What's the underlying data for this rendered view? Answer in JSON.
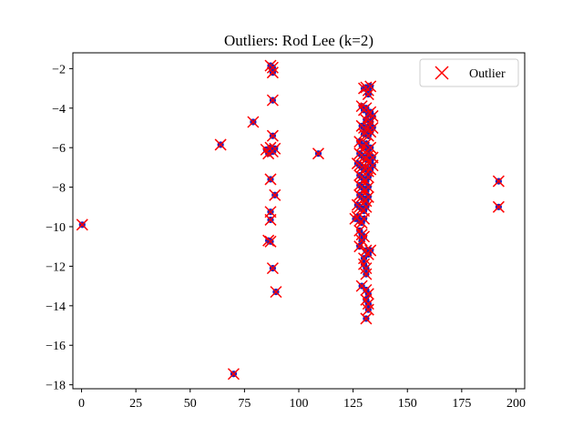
{
  "chart_data": {
    "type": "scatter",
    "title": "Outliers: Rod Lee (k=2)",
    "xlabel": "",
    "ylabel": "",
    "xlim": [
      -4,
      204
    ],
    "ylim": [
      -18.2,
      -1.2
    ],
    "xticks": [
      0,
      25,
      50,
      75,
      100,
      125,
      150,
      175,
      200
    ],
    "yticks": [
      -18,
      -16,
      -14,
      -12,
      -10,
      -8,
      -6,
      -4,
      -2
    ],
    "grid": false,
    "legend": {
      "position": "top-right",
      "entries": [
        "Outlier"
      ]
    },
    "colors": {
      "points": "#1f1fbf",
      "outlier_marker": "#ff0000"
    },
    "series": [
      {
        "name": "Outlier",
        "marker": "x",
        "points": [
          [
            0.3,
            -9.9
          ],
          [
            64,
            -5.85
          ],
          [
            70,
            -17.45
          ],
          [
            79,
            -4.7
          ],
          [
            85,
            -6.1
          ],
          [
            86,
            -6.3
          ],
          [
            87,
            -6.0
          ],
          [
            88,
            -6.2
          ],
          [
            89,
            -6.05
          ],
          [
            87,
            -1.85
          ],
          [
            88,
            -1.95
          ],
          [
            88,
            -2.2
          ],
          [
            88,
            -3.6
          ],
          [
            88,
            -5.4
          ],
          [
            87,
            -7.6
          ],
          [
            89,
            -8.4
          ],
          [
            87,
            -9.25
          ],
          [
            87,
            -9.65
          ],
          [
            86,
            -10.7
          ],
          [
            87,
            -10.75
          ],
          [
            88,
            -12.1
          ],
          [
            89.5,
            -13.3
          ],
          [
            109,
            -6.3
          ],
          [
            130,
            -3.0
          ],
          [
            131,
            -2.95
          ],
          [
            132,
            -3.1
          ],
          [
            133,
            -2.9
          ],
          [
            132,
            -3.3
          ],
          [
            129,
            -3.9
          ],
          [
            130,
            -4.1
          ],
          [
            131,
            -4.0
          ],
          [
            132,
            -4.3
          ],
          [
            133,
            -4.2
          ],
          [
            134,
            -4.4
          ],
          [
            131,
            -4.6
          ],
          [
            133,
            -4.7
          ],
          [
            129,
            -4.9
          ],
          [
            130,
            -5.0
          ],
          [
            131,
            -5.1
          ],
          [
            132,
            -4.95
          ],
          [
            133,
            -5.2
          ],
          [
            134,
            -5.0
          ],
          [
            130,
            -5.3
          ],
          [
            132,
            -5.4
          ],
          [
            128,
            -5.7
          ],
          [
            129,
            -5.9
          ],
          [
            130,
            -6.0
          ],
          [
            131,
            -5.8
          ],
          [
            132,
            -6.1
          ],
          [
            133,
            -6.0
          ],
          [
            128,
            -6.3
          ],
          [
            129,
            -6.4
          ],
          [
            130,
            -6.5
          ],
          [
            131,
            -6.6
          ],
          [
            132,
            -6.4
          ],
          [
            133,
            -6.7
          ],
          [
            134,
            -6.5
          ],
          [
            127,
            -6.8
          ],
          [
            128,
            -6.9
          ],
          [
            129,
            -7.0
          ],
          [
            130,
            -7.1
          ],
          [
            131,
            -7.0
          ],
          [
            132,
            -7.2
          ],
          [
            133,
            -7.1
          ],
          [
            134,
            -6.9
          ],
          [
            128,
            -7.4
          ],
          [
            129,
            -7.5
          ],
          [
            130,
            -7.6
          ],
          [
            131,
            -7.7
          ],
          [
            132,
            -7.5
          ],
          [
            128,
            -7.9
          ],
          [
            129,
            -8.0
          ],
          [
            130,
            -8.1
          ],
          [
            131,
            -8.2
          ],
          [
            132,
            -8.0
          ],
          [
            128,
            -8.4
          ],
          [
            129,
            -8.5
          ],
          [
            130,
            -8.6
          ],
          [
            131,
            -8.7
          ],
          [
            132,
            -8.5
          ],
          [
            127,
            -8.9
          ],
          [
            128,
            -9.0
          ],
          [
            129,
            -9.1
          ],
          [
            130,
            -9.2
          ],
          [
            131,
            -9.0
          ],
          [
            126,
            -9.6
          ],
          [
            127,
            -9.5
          ],
          [
            128,
            -9.7
          ],
          [
            129,
            -9.8
          ],
          [
            130,
            -9.6
          ],
          [
            128,
            -10.2
          ],
          [
            129,
            -10.4
          ],
          [
            130,
            -10.5
          ],
          [
            129,
            -10.7
          ],
          [
            128,
            -11.0
          ],
          [
            131,
            -11.2
          ],
          [
            132,
            -11.4
          ],
          [
            133,
            -11.2
          ],
          [
            130,
            -11.6
          ],
          [
            130,
            -11.9
          ],
          [
            131,
            -12.1
          ],
          [
            131,
            -12.4
          ],
          [
            129,
            -13.0
          ],
          [
            131,
            -13.2
          ],
          [
            132,
            -13.4
          ],
          [
            131,
            -13.7
          ],
          [
            132,
            -13.9
          ],
          [
            132,
            -14.2
          ],
          [
            131,
            -14.65
          ],
          [
            192,
            -7.7
          ],
          [
            192,
            -9.0
          ]
        ]
      }
    ]
  }
}
